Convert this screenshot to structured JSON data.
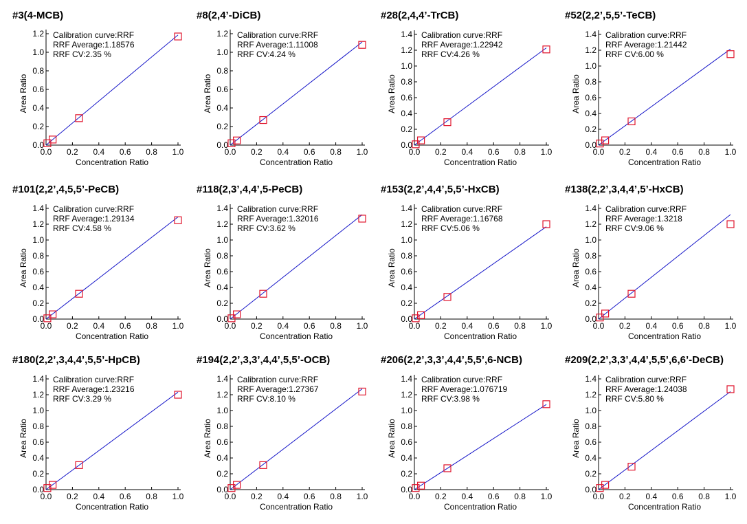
{
  "figure": {
    "xlabel": "Concentration Ratio",
    "ylabel": "Area Ratio",
    "annotation_prefix": {
      "curve": "Calibration curve:",
      "average": "RRF Average:",
      "cv": "RRF CV:"
    }
  },
  "chart_data": [
    {
      "type": "scatter",
      "title": "#3(4-MCB)",
      "curve": "RRF",
      "rrf_average": "1.18576",
      "rrf_cv": "2.35 %",
      "x": [
        0.01,
        0.05,
        0.25,
        1.0
      ],
      "y": [
        0.02,
        0.06,
        0.29,
        1.17
      ],
      "xlim": [
        0,
        1
      ],
      "ylim": [
        0,
        1.2
      ],
      "yticks": [
        "0.0",
        "0.2",
        "0.4",
        "0.6",
        "0.8",
        "1.0",
        "1.2"
      ],
      "xticks": [
        "0.0",
        "0.2",
        "0.4",
        "0.6",
        "0.8",
        "1.0"
      ],
      "xlabel": "Concentration Ratio",
      "ylabel": "Area Ratio"
    },
    {
      "type": "scatter",
      "title": "#8(2,4’-DiCB)",
      "curve": "RRF",
      "rrf_average": "1.11008",
      "rrf_cv": "4.24 %",
      "x": [
        0.01,
        0.05,
        0.25,
        1.0
      ],
      "y": [
        0.02,
        0.05,
        0.27,
        1.08
      ],
      "xlim": [
        0,
        1
      ],
      "ylim": [
        0,
        1.2
      ],
      "yticks": [
        "0.0",
        "0.2",
        "0.4",
        "0.6",
        "0.8",
        "1.0",
        "1.2"
      ],
      "xticks": [
        "0.0",
        "0.2",
        "0.4",
        "0.6",
        "0.8",
        "1.0"
      ],
      "xlabel": "Concentration Ratio",
      "ylabel": "Area Ratio"
    },
    {
      "type": "scatter",
      "title": "#28(2,4,4’-TrCB)",
      "curve": "RRF",
      "rrf_average": "1.22942",
      "rrf_cv": "4.26 %",
      "x": [
        0.01,
        0.05,
        0.25,
        1.0
      ],
      "y": [
        0.01,
        0.06,
        0.29,
        1.21
      ],
      "xlim": [
        0,
        1
      ],
      "ylim": [
        0,
        1.4
      ],
      "yticks": [
        "0.0",
        "0.2",
        "0.4",
        "0.6",
        "0.8",
        "1.0",
        "1.2",
        "1.4"
      ],
      "xticks": [
        "0.0",
        "0.2",
        "0.4",
        "0.6",
        "0.8",
        "1.0"
      ],
      "xlabel": "Concentration Ratio",
      "ylabel": "Area Ratio"
    },
    {
      "type": "scatter",
      "title": "#52(2,2’,5,5’-TeCB)",
      "curve": "RRF",
      "rrf_average": "1.21442",
      "rrf_cv": "6.00 %",
      "x": [
        0.01,
        0.05,
        0.25,
        1.0
      ],
      "y": [
        0.02,
        0.06,
        0.3,
        1.15
      ],
      "xlim": [
        0,
        1
      ],
      "ylim": [
        0,
        1.4
      ],
      "yticks": [
        "0.0",
        "0.2",
        "0.4",
        "0.6",
        "0.8",
        "1.0",
        "1.2",
        "1.4"
      ],
      "xticks": [
        "0.0",
        "0.2",
        "0.4",
        "0.6",
        "0.8",
        "1.0"
      ],
      "xlabel": "Concentration Ratio",
      "ylabel": "Area Ratio"
    },
    {
      "type": "scatter",
      "title": "#101(2,2’,4,5,5’-PeCB)",
      "curve": "RRF",
      "rrf_average": "1.29134",
      "rrf_cv": "4.58 %",
      "x": [
        0.01,
        0.05,
        0.25,
        1.0
      ],
      "y": [
        0.01,
        0.06,
        0.32,
        1.25
      ],
      "xlim": [
        0,
        1
      ],
      "ylim": [
        0,
        1.4
      ],
      "yticks": [
        "0.0",
        "0.2",
        "0.4",
        "0.6",
        "0.8",
        "1.0",
        "1.2",
        "1.4"
      ],
      "xticks": [
        "0.0",
        "0.2",
        "0.4",
        "0.6",
        "0.8",
        "1.0"
      ],
      "xlabel": "Concentration Ratio",
      "ylabel": "Area Ratio"
    },
    {
      "type": "scatter",
      "title": "#118(2,3’,4,4’,5-PeCB)",
      "curve": "RRF",
      "rrf_average": "1.32016",
      "rrf_cv": "3.62 %",
      "x": [
        0.01,
        0.05,
        0.25,
        1.0
      ],
      "y": [
        0.01,
        0.06,
        0.32,
        1.27
      ],
      "xlim": [
        0,
        1
      ],
      "ylim": [
        0,
        1.4
      ],
      "yticks": [
        "0.0",
        "0.2",
        "0.4",
        "0.6",
        "0.8",
        "1.0",
        "1.2",
        "1.4"
      ],
      "xticks": [
        "0.0",
        "0.2",
        "0.4",
        "0.6",
        "0.8",
        "1.0"
      ],
      "xlabel": "Concentration Ratio",
      "ylabel": "Area Ratio"
    },
    {
      "type": "scatter",
      "title": "#153(2,2’,4,4’,5,5’-HxCB)",
      "curve": "RRF",
      "rrf_average": "1.16768",
      "rrf_cv": "5.06 %",
      "x": [
        0.01,
        0.05,
        0.25,
        1.0
      ],
      "y": [
        0.01,
        0.05,
        0.28,
        1.2
      ],
      "xlim": [
        0,
        1
      ],
      "ylim": [
        0,
        1.4
      ],
      "yticks": [
        "0.0",
        "0.2",
        "0.4",
        "0.6",
        "0.8",
        "1.0",
        "1.2",
        "1.4"
      ],
      "xticks": [
        "0.0",
        "0.2",
        "0.4",
        "0.6",
        "0.8",
        "1.0"
      ],
      "xlabel": "Concentration Ratio",
      "ylabel": "Area Ratio"
    },
    {
      "type": "scatter",
      "title": "#138(2,2’,3,4,4’,5’-HxCB)",
      "curve": "RRF",
      "rrf_average": "1.3218",
      "rrf_cv": "9.06 %",
      "x": [
        0.01,
        0.05,
        0.25,
        1.0
      ],
      "y": [
        0.02,
        0.07,
        0.32,
        1.2
      ],
      "xlim": [
        0,
        1
      ],
      "ylim": [
        0,
        1.4
      ],
      "yticks": [
        "0.0",
        "0.2",
        "0.4",
        "0.6",
        "0.8",
        "1.0",
        "1.2",
        "1.4"
      ],
      "xticks": [
        "0.0",
        "0.2",
        "0.4",
        "0.6",
        "0.8",
        "1.0"
      ],
      "xlabel": "Concentration Ratio",
      "ylabel": "Area Ratio"
    },
    {
      "type": "scatter",
      "title": "#180(2,2’,3,4,4’,5,5’-HpCB)",
      "curve": "RRF",
      "rrf_average": "1.23216",
      "rrf_cv": "3.29 %",
      "x": [
        0.01,
        0.05,
        0.25,
        1.0
      ],
      "y": [
        0.02,
        0.06,
        0.31,
        1.2
      ],
      "xlim": [
        0,
        1
      ],
      "ylim": [
        0,
        1.4
      ],
      "yticks": [
        "0.0",
        "0.2",
        "0.4",
        "0.6",
        "0.8",
        "1.0",
        "1.2",
        "1.4"
      ],
      "xticks": [
        "0.0",
        "0.2",
        "0.4",
        "0.6",
        "0.8",
        "1.0"
      ],
      "xlabel": "Concentration Ratio",
      "ylabel": "Area Ratio"
    },
    {
      "type": "scatter",
      "title": "#194(2,2’,3,3’,4,4’,5,5’-OCB)",
      "curve": "RRF",
      "rrf_average": "1.27367",
      "rrf_cv": "8.10 %",
      "x": [
        0.01,
        0.05,
        0.25,
        1.0
      ],
      "y": [
        0.02,
        0.06,
        0.31,
        1.24
      ],
      "xlim": [
        0,
        1
      ],
      "ylim": [
        0,
        1.4
      ],
      "yticks": [
        "0.0",
        "0.2",
        "0.4",
        "0.6",
        "0.8",
        "1.0",
        "1.2",
        "1.4"
      ],
      "xticks": [
        "0.0",
        "0.2",
        "0.4",
        "0.6",
        "0.8",
        "1.0"
      ],
      "xlabel": "Concentration Ratio",
      "ylabel": "Area Ratio"
    },
    {
      "type": "scatter",
      "title": "#206(2,2’,3,3’,4,4’,5,5’,6-NCB)",
      "curve": "RRF",
      "rrf_average": "1.076719",
      "rrf_cv": "3.98 %",
      "x": [
        0.01,
        0.05,
        0.25,
        1.0
      ],
      "y": [
        0.02,
        0.05,
        0.27,
        1.08
      ],
      "xlim": [
        0,
        1
      ],
      "ylim": [
        0,
        1.4
      ],
      "yticks": [
        "0.0",
        "0.2",
        "0.4",
        "0.6",
        "0.8",
        "1.0",
        "1.2",
        "1.4"
      ],
      "xticks": [
        "0.0",
        "0.2",
        "0.4",
        "0.6",
        "0.8",
        "1.0"
      ],
      "xlabel": "Concentration Ratio",
      "ylabel": "Area Ratio"
    },
    {
      "type": "scatter",
      "title": "#209(2,2’,3,3’,4,4’,5,5’,6,6’-DeCB)",
      "curve": "RRF",
      "rrf_average": "1.24038",
      "rrf_cv": "5.80 %",
      "x": [
        0.01,
        0.05,
        0.25,
        1.0
      ],
      "y": [
        0.02,
        0.06,
        0.29,
        1.27
      ],
      "xlim": [
        0,
        1
      ],
      "ylim": [
        0,
        1.4
      ],
      "yticks": [
        "0.0",
        "0.2",
        "0.4",
        "0.6",
        "0.8",
        "1.0",
        "1.2",
        "1.4"
      ],
      "xticks": [
        "0.0",
        "0.2",
        "0.4",
        "0.6",
        "0.8",
        "1.0"
      ],
      "xlabel": "Concentration Ratio",
      "ylabel": "Area Ratio"
    }
  ],
  "colors": {
    "fit_line": "#1515c8",
    "marker": "#e0142c",
    "axis": "#000000"
  }
}
